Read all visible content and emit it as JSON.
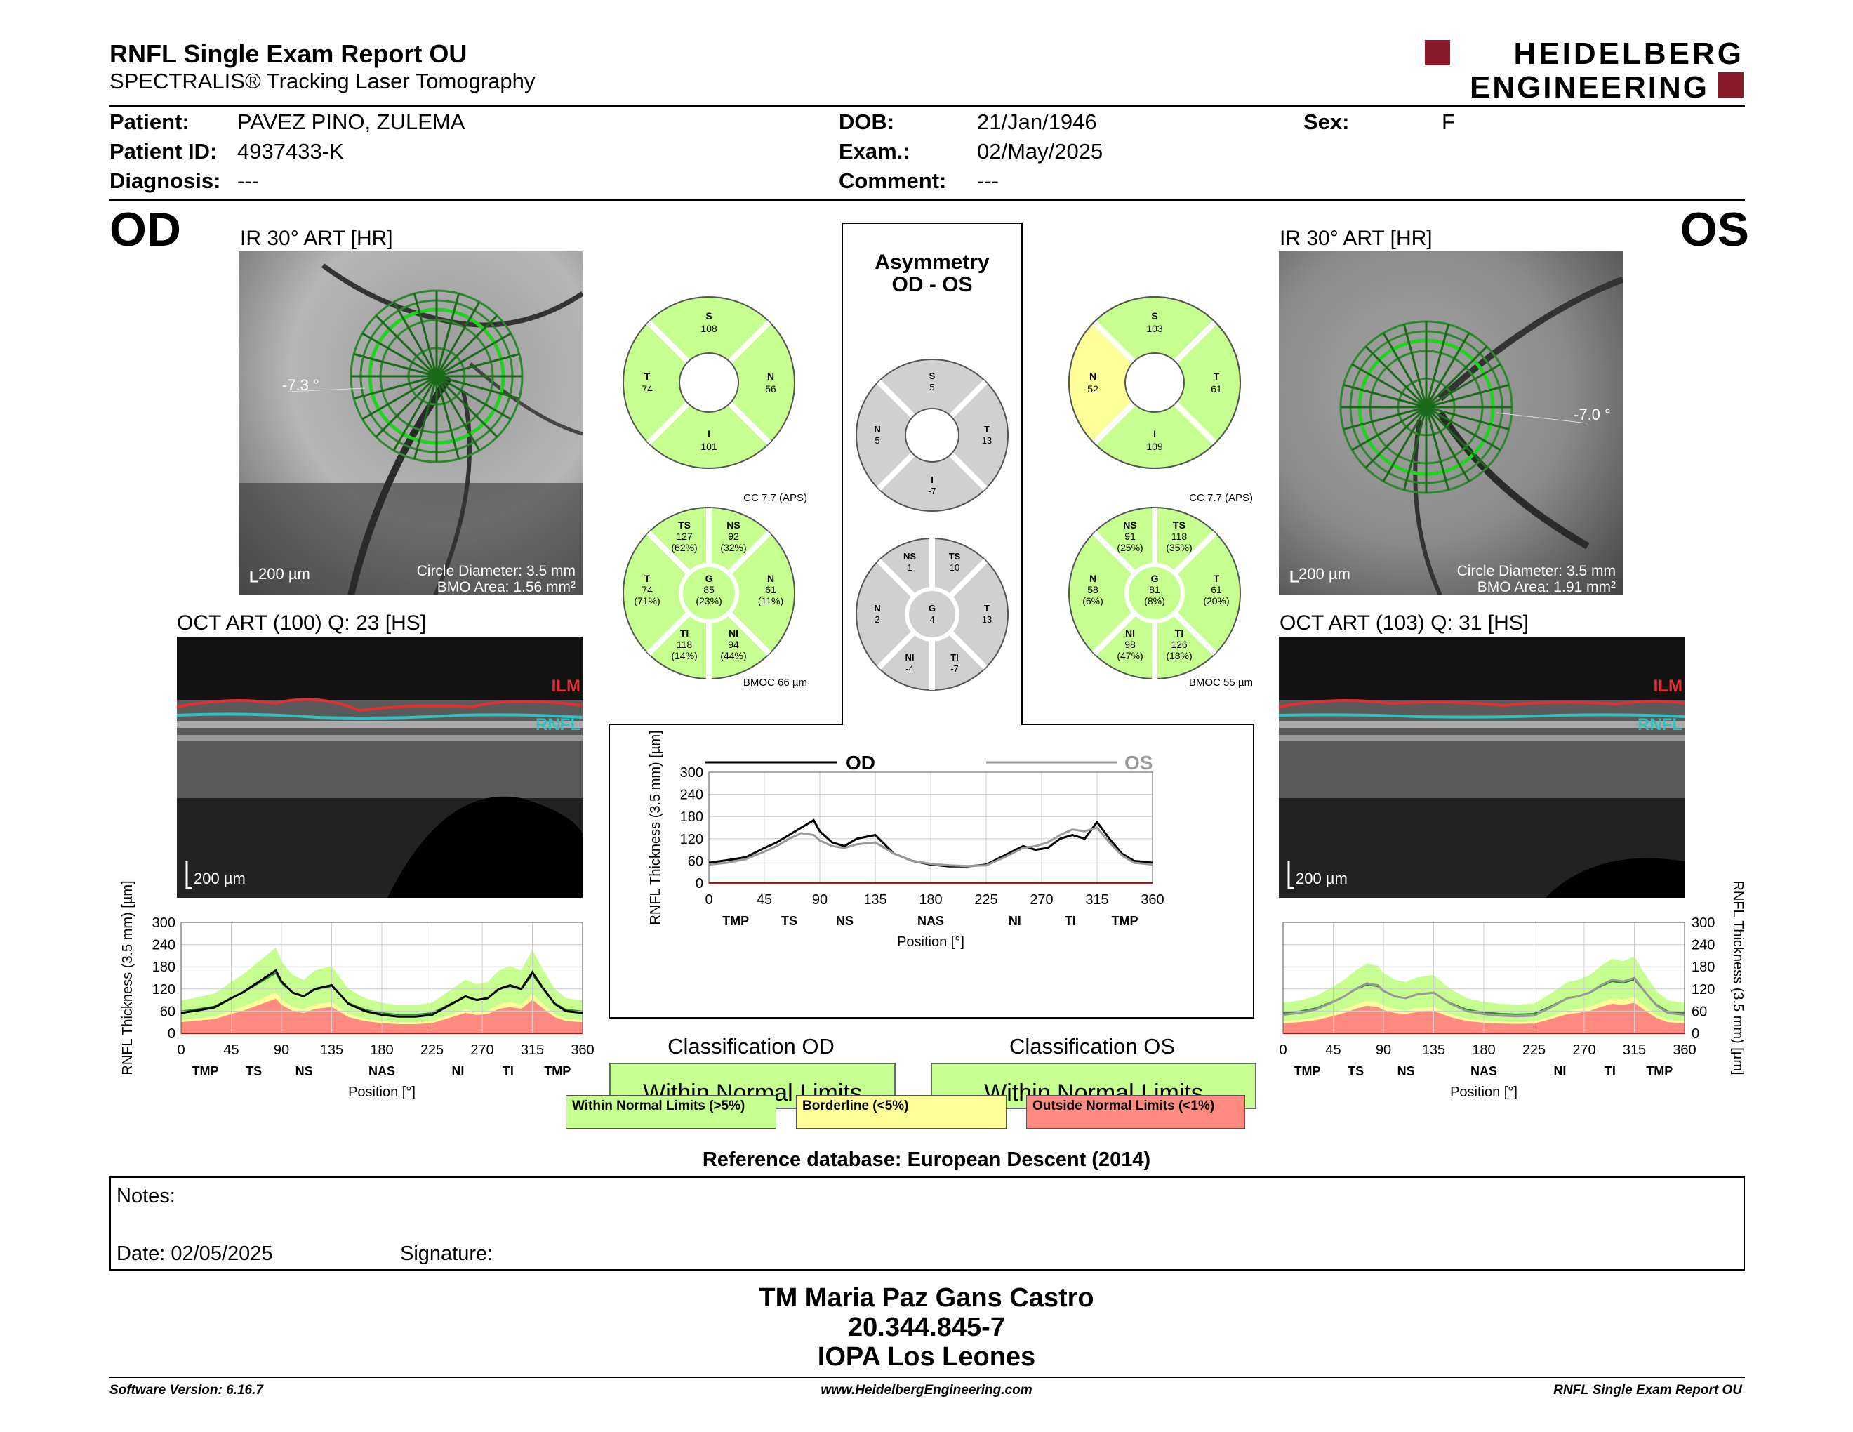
{
  "header": {
    "title": "RNFL Single Exam Report OU",
    "subtitle": "SPECTRALIS® Tracking Laser Tomography",
    "logo_line1": "HEIDELBERG",
    "logo_line2": "ENGINEERING",
    "brand_color": "#8b1a2a"
  },
  "patient": {
    "patient_label": "Patient:",
    "patient_value": "PAVEZ PINO, ZULEMA",
    "id_label": "Patient ID:",
    "id_value": "4937433-K",
    "diag_label": "Diagnosis:",
    "diag_value": "---",
    "dob_label": "DOB:",
    "dob_value": "21/Jan/1946",
    "exam_label": "Exam.:",
    "exam_value": "02/May/2025",
    "comment_label": "Comment:",
    "comment_value": "---",
    "sex_label": "Sex:",
    "sex_value": "F"
  },
  "od": {
    "eye": "OD",
    "ir_title": "IR 30° ART [HR]",
    "angle": "-7.3 °",
    "scale": "200 µm",
    "circle_diameter": "Circle Diameter: 3.5 mm",
    "bmo_area": "BMO Area: 1.56 mm²",
    "oct_title": "OCT ART (100) Q: 23 [HS]",
    "oct_scale": "200 µm",
    "ilm": "ILM",
    "rnfl": "RNFL",
    "sectors": {
      "S": "108",
      "N": "56",
      "I": "101",
      "T": "74"
    },
    "cc": "CC 7.7 (APS)",
    "bmoc": "BMOC 66 µm",
    "gsect": {
      "TS": [
        "127",
        "(62%)"
      ],
      "NS": [
        "92",
        "(32%)"
      ],
      "T": [
        "74",
        "(71%)"
      ],
      "G": [
        "85",
        "(23%)"
      ],
      "N": [
        "61",
        "(11%)"
      ],
      "TI": [
        "118",
        "(14%)"
      ],
      "NI": [
        "94",
        "(44%)"
      ]
    }
  },
  "os": {
    "eye": "OS",
    "ir_title": "IR 30° ART [HR]",
    "angle": "-7.0 °",
    "scale": "200 µm",
    "circle_diameter": "Circle Diameter: 3.5 mm",
    "bmo_area": "BMO Area: 1.91 mm²",
    "oct_title": "OCT ART (103) Q: 31 [HS]",
    "oct_scale": "200 µm",
    "ilm": "ILM",
    "rnfl": "RNFL",
    "sectors": {
      "S": "103",
      "N": "52",
      "I": "109",
      "T": "61"
    },
    "cc": "CC 7.7 (APS)",
    "bmoc": "BMOC 55 µm",
    "gsect": {
      "NS": [
        "91",
        "(25%)"
      ],
      "TS": [
        "118",
        "(35%)"
      ],
      "N": [
        "58",
        "(6%)"
      ],
      "G": [
        "81",
        "(8%)"
      ],
      "T": [
        "61",
        "(20%)"
      ],
      "NI": [
        "98",
        "(47%)"
      ],
      "TI": [
        "126",
        "(18%)"
      ]
    }
  },
  "asym": {
    "title1": "Asymmetry",
    "title2": "OD - OS",
    "sectors": {
      "S": "5",
      "N": "5",
      "T": "13",
      "I": "-7"
    },
    "gsect": {
      "NS": "1",
      "TS": "10",
      "N": "2",
      "G": "4",
      "T": "13",
      "NI": "-4",
      "TI": "-7"
    }
  },
  "comparison": {
    "od_label": "OD",
    "os_label": "OS",
    "ylabel": "RNFL Thickness (3.5 mm) [µm]",
    "xlabel": "Position [°]"
  },
  "chart_data": [
    {
      "type": "line",
      "title": "",
      "xlabel": "Position [°]",
      "ylabel": "RNFL Thickness (3.5 mm) [µm]",
      "x": [
        0,
        15,
        30,
        45,
        55,
        65,
        75,
        85,
        90,
        100,
        110,
        120,
        135,
        150,
        165,
        180,
        195,
        210,
        225,
        240,
        255,
        265,
        275,
        285,
        295,
        305,
        315,
        325,
        335,
        345,
        360
      ],
      "series": [
        {
          "name": "OD",
          "values": [
            55,
            62,
            70,
            95,
            110,
            130,
            150,
            170,
            140,
            110,
            100,
            120,
            130,
            80,
            60,
            50,
            45,
            45,
            50,
            75,
            100,
            90,
            95,
            120,
            130,
            120,
            165,
            120,
            80,
            60,
            55
          ]
        },
        {
          "name": "OS",
          "values": [
            50,
            55,
            65,
            85,
            100,
            120,
            135,
            130,
            115,
            100,
            95,
            105,
            110,
            80,
            60,
            52,
            48,
            46,
            48,
            70,
            95,
            100,
            110,
            130,
            145,
            140,
            150,
            110,
            75,
            55,
            50
          ]
        }
      ],
      "xlim": [
        0,
        360
      ],
      "ylim": [
        0,
        300
      ],
      "xticks": [
        "0",
        "45",
        "90",
        "135",
        "180",
        "225",
        "270",
        "315",
        "360"
      ],
      "yticks": [
        "0",
        "60",
        "120",
        "180",
        "240",
        "300"
      ],
      "sector_labels": [
        "TMP",
        "TS",
        "NS",
        "NAS",
        "NI",
        "TI",
        "TMP"
      ]
    },
    {
      "type": "line",
      "title": "",
      "xlabel": "Position [°]",
      "ylabel": "RNFL Thickness (3.5 mm) [µm]",
      "x": [
        0,
        15,
        30,
        45,
        55,
        65,
        75,
        85,
        90,
        100,
        110,
        120,
        135,
        150,
        165,
        180,
        195,
        210,
        225,
        240,
        255,
        265,
        275,
        285,
        295,
        305,
        315,
        325,
        335,
        345,
        360
      ],
      "series": [
        {
          "name": "OD",
          "values": [
            55,
            62,
            70,
            95,
            110,
            130,
            150,
            170,
            140,
            110,
            100,
            120,
            130,
            80,
            60,
            50,
            45,
            45,
            50,
            75,
            100,
            90,
            95,
            120,
            130,
            120,
            165,
            120,
            80,
            60,
            55
          ]
        }
      ],
      "xlim": [
        0,
        360
      ],
      "ylim": [
        0,
        300
      ],
      "xticks": [
        "0",
        "45",
        "90",
        "135",
        "180",
        "225",
        "270",
        "315",
        "360"
      ],
      "yticks": [
        "0",
        "60",
        "120",
        "180",
        "240",
        "300"
      ],
      "sector_labels": [
        "TMP",
        "TS",
        "NS",
        "NAS",
        "NI",
        "TI",
        "TMP"
      ]
    },
    {
      "type": "line",
      "title": "",
      "xlabel": "Position [°]",
      "ylabel": "RNFL Thickness (3.5 mm) [µm]",
      "x": [
        0,
        15,
        30,
        45,
        55,
        65,
        75,
        85,
        90,
        100,
        110,
        120,
        135,
        150,
        165,
        180,
        195,
        210,
        225,
        240,
        255,
        265,
        275,
        285,
        295,
        305,
        315,
        325,
        335,
        345,
        360
      ],
      "series": [
        {
          "name": "OS",
          "values": [
            50,
            55,
            65,
            85,
            100,
            120,
            135,
            130,
            115,
            100,
            95,
            105,
            110,
            80,
            60,
            52,
            48,
            46,
            48,
            70,
            95,
            100,
            110,
            130,
            145,
            140,
            150,
            110,
            75,
            55,
            50
          ]
        }
      ],
      "xlim": [
        0,
        360
      ],
      "ylim": [
        0,
        300
      ],
      "xticks": [
        "0",
        "45",
        "90",
        "135",
        "180",
        "225",
        "270",
        "315",
        "360"
      ],
      "yticks": [
        "0",
        "60",
        "120",
        "180",
        "240",
        "300"
      ],
      "sector_labels": [
        "TMP",
        "TS",
        "NS",
        "NAS",
        "NI",
        "TI",
        "TMP"
      ]
    }
  ],
  "classification": {
    "od_title": "Classification OD",
    "od_value": "Within Normal Limits",
    "os_title": "Classification OS",
    "os_value": "Within Normal Limits",
    "legend_green": "Within Normal Limits (>5%)",
    "legend_yellow": "Borderline (<5%)",
    "legend_red": "Outside Normal Limits (<1%)"
  },
  "reference": "Reference database: European Descent (2014)",
  "notes": {
    "notes_label": "Notes:",
    "date_label": "Date: 02/05/2025",
    "signature_label": "Signature:"
  },
  "signer": {
    "name": "TM Maria Paz Gans Castro",
    "rut": "20.344.845-7",
    "org": "IOPA Los Leones"
  },
  "footer": {
    "software": "Software Version: 6.16.7",
    "website": "www.HeidelbergEngineering.com",
    "report": "RNFL Single Exam Report OU"
  },
  "colors": {
    "normal": "#c6ff8f",
    "borderline": "#ffff99",
    "outside": "#ff8a80",
    "asym": "#d0d0d0",
    "circle": "#1fd31f"
  }
}
